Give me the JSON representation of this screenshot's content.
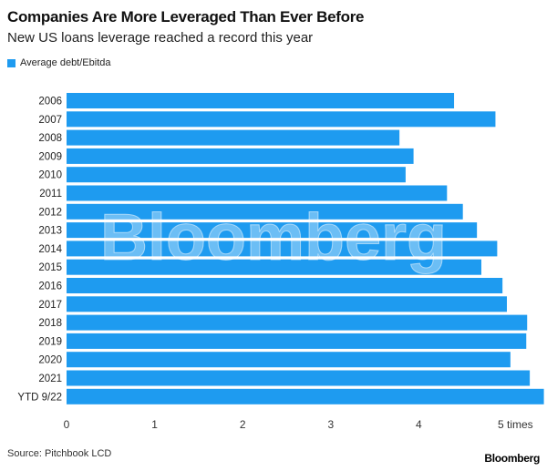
{
  "chart_data": {
    "type": "bar",
    "orientation": "horizontal",
    "title": "Companies Are More Leveraged Than Ever Before",
    "subtitle": "New US loans leverage reached a record this year",
    "categories": [
      "2006",
      "2007",
      "2008",
      "2009",
      "2010",
      "2011",
      "2012",
      "2013",
      "2014",
      "2015",
      "2016",
      "2017",
      "2018",
      "2019",
      "2020",
      "2021",
      "YTD 9/22"
    ],
    "series": [
      {
        "name": "Average debt/Ebitda",
        "values": [
          4.4,
          4.87,
          3.78,
          3.94,
          3.85,
          4.32,
          4.5,
          4.66,
          4.89,
          4.71,
          4.95,
          5.0,
          5.23,
          5.22,
          5.04,
          5.26,
          5.42
        ],
        "color": "#1e9bf0"
      }
    ],
    "xticks": [
      "0",
      "1",
      "2",
      "3",
      "4",
      "5 times"
    ],
    "xlim": [
      0,
      5.45
    ],
    "grid": false,
    "legend": "top-left",
    "source": "Source: Pitchbook LCD",
    "brand": "Bloomberg",
    "watermark": "Bloomberg"
  }
}
